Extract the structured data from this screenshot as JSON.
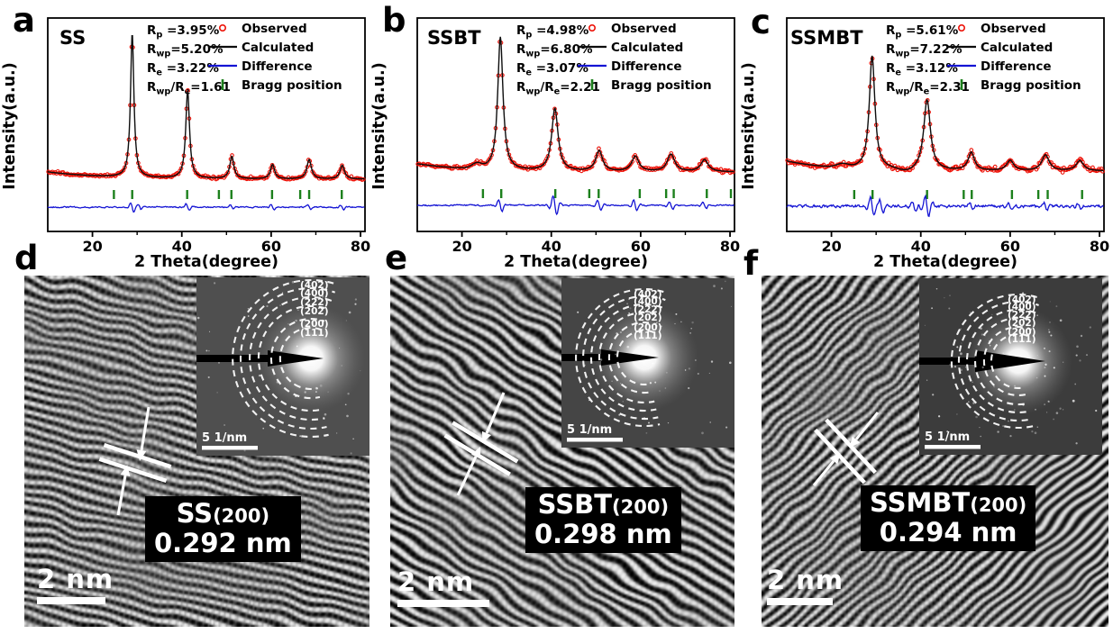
{
  "letters": [
    "a",
    "b",
    "c",
    "d",
    "e",
    "f"
  ],
  "colors": {
    "observed": "#ed1309",
    "calculated": "#0d0d0d",
    "difference": "#1414d4",
    "bragg": "#1c801c",
    "text": "#000000",
    "tem_text": "#ffffff"
  },
  "chart_data": [
    {
      "type": "line",
      "title": "SS",
      "xlabel": "2 Theta(degree)",
      "ylabel": "Intensity(a.u.)",
      "xlim": [
        10,
        81
      ],
      "xticks": [
        20,
        40,
        60,
        80
      ],
      "grid": false,
      "legend_position": "top-right",
      "legend": [
        {
          "label": "Observed",
          "style": "red-open-circles"
        },
        {
          "label": "Calculated",
          "style": "black-line"
        },
        {
          "label": "Difference",
          "style": "blue-line"
        },
        {
          "label": "Bragg position",
          "style": "green-ticks"
        }
      ],
      "r_factors": [
        {
          "parts": [
            {
              "t": "R"
            },
            {
              "s": "p"
            },
            {
              "t": " =3.95%"
            }
          ]
        },
        {
          "parts": [
            {
              "t": "R"
            },
            {
              "s": "wp"
            },
            {
              "t": "=5.20%"
            }
          ]
        },
        {
          "parts": [
            {
              "t": "R"
            },
            {
              "s": "e"
            },
            {
              "t": " =3.22%"
            }
          ]
        },
        {
          "parts": [
            {
              "t": "R"
            },
            {
              "s": "wp"
            },
            {
              "t": "/R"
            },
            {
              "s": "e"
            },
            {
              "t": "=1.61"
            }
          ]
        }
      ],
      "peaks_2theta": [
        28.9,
        41.3,
        51.2,
        60.3,
        68.5,
        75.9
      ],
      "peak_rel_intensity": [
        1.0,
        0.61,
        0.155,
        0.1,
        0.135,
        0.095
      ],
      "peak_hwhm_deg": [
        0.45,
        0.5,
        0.55,
        0.55,
        0.6,
        0.6
      ],
      "bragg_positions_2theta": [
        24.8,
        28.9,
        41.2,
        48.3,
        51.1,
        60.2,
        66.5,
        68.5,
        75.8
      ]
    },
    {
      "type": "line",
      "title": "SSBT",
      "xlabel": "2 Theta(degree)",
      "ylabel": "Intensity(a.u.)",
      "xlim": [
        10,
        81
      ],
      "xticks": [
        20,
        40,
        60,
        80
      ],
      "grid": false,
      "legend_position": "top-right",
      "legend": [
        {
          "label": "Observed",
          "style": "red-open-circles"
        },
        {
          "label": "Calculated",
          "style": "black-line"
        },
        {
          "label": "Difference",
          "style": "blue-line"
        },
        {
          "label": "Bragg position",
          "style": "green-ticks"
        }
      ],
      "r_factors": [
        {
          "parts": [
            {
              "t": "R"
            },
            {
              "s": "p"
            },
            {
              "t": " =4.98%"
            }
          ]
        },
        {
          "parts": [
            {
              "t": "R"
            },
            {
              "s": "wp"
            },
            {
              "t": "=6.80%"
            }
          ]
        },
        {
          "parts": [
            {
              "t": "R"
            },
            {
              "s": "e"
            },
            {
              "t": " =3.07%"
            }
          ]
        },
        {
          "parts": [
            {
              "t": "R"
            },
            {
              "s": "wp"
            },
            {
              "t": "/R"
            },
            {
              "s": "e"
            },
            {
              "t": "=2.21"
            }
          ]
        }
      ],
      "peaks_2theta": [
        28.6,
        40.8,
        50.7,
        58.8,
        66.8,
        74.3
      ],
      "peak_rel_intensity": [
        1.0,
        0.47,
        0.155,
        0.115,
        0.13,
        0.09
      ],
      "peak_hwhm_deg": [
        0.7,
        0.85,
        0.9,
        0.95,
        1.0,
        1.0
      ],
      "bragg_positions_2theta": [
        24.7,
        28.8,
        40.9,
        48.5,
        50.6,
        59.8,
        65.7,
        67.4,
        74.8,
        80.2
      ]
    },
    {
      "type": "line",
      "title": "SSMBT",
      "xlabel": "2 Theta(degree)",
      "ylabel": "Intensity(a.u.)",
      "xlim": [
        10,
        81
      ],
      "xticks": [
        20,
        40,
        60,
        80
      ],
      "grid": false,
      "legend_position": "top-right",
      "legend": [
        {
          "label": "Observed",
          "style": "red-open-circles"
        },
        {
          "label": "Calculated",
          "style": "black-line"
        },
        {
          "label": "Difference",
          "style": "blue-line"
        },
        {
          "label": "Bragg position",
          "style": "green-ticks"
        }
      ],
      "r_factors": [
        {
          "parts": [
            {
              "t": "R"
            },
            {
              "s": "p"
            },
            {
              "t": " =5.61%"
            }
          ]
        },
        {
          "parts": [
            {
              "t": "R"
            },
            {
              "s": "wp"
            },
            {
              "t": "=7.22%"
            }
          ]
        },
        {
          "parts": [
            {
              "t": "R"
            },
            {
              "s": "e"
            },
            {
              "t": " =3.12%"
            }
          ]
        },
        {
          "parts": [
            {
              "t": "R"
            },
            {
              "s": "wp"
            },
            {
              "t": "/R"
            },
            {
              "s": "e"
            },
            {
              "t": "=2.31"
            }
          ]
        }
      ],
      "peaks_2theta": [
        29.1,
        41.4,
        51.3,
        60.0,
        67.9,
        75.6
      ],
      "peak_rel_intensity": [
        1.0,
        0.62,
        0.16,
        0.09,
        0.14,
        0.09
      ],
      "peak_hwhm_deg": [
        0.75,
        0.9,
        0.85,
        0.95,
        1.0,
        1.0
      ],
      "bragg_positions_2theta": [
        25.1,
        29.2,
        41.4,
        49.6,
        51.4,
        60.4,
        66.3,
        68.4,
        76.1
      ]
    }
  ],
  "tem_panels": [
    {
      "letter": "d",
      "label_main": "SS",
      "label_sub": "(200)",
      "label_value": "0.292 nm",
      "scalebar_label": "2 nm",
      "saed": {
        "ring_labels": [
          "(402)",
          "(400)",
          "(222)",
          "(202)",
          "(200)",
          "(111)"
        ],
        "scalebar_label": "5 1/nm"
      }
    },
    {
      "letter": "e",
      "label_main": "SSBT",
      "label_sub": "(200)",
      "label_value": "0.298 nm",
      "scalebar_label": "2 nm",
      "saed": {
        "ring_labels": [
          "(402)",
          "(400)",
          "(222)",
          "(202)",
          "(200)",
          "(111)"
        ],
        "scalebar_label": "5 1/nm"
      }
    },
    {
      "letter": "f",
      "label_main": "SSMBT",
      "label_sub": "(200)",
      "label_value": "0.294 nm",
      "scalebar_label": "2 nm",
      "saed": {
        "ring_labels": [
          "(402)",
          "(400)",
          "(222)",
          "(202)",
          "(200)",
          "(111)"
        ],
        "scalebar_label": "5 1/nm"
      }
    }
  ]
}
